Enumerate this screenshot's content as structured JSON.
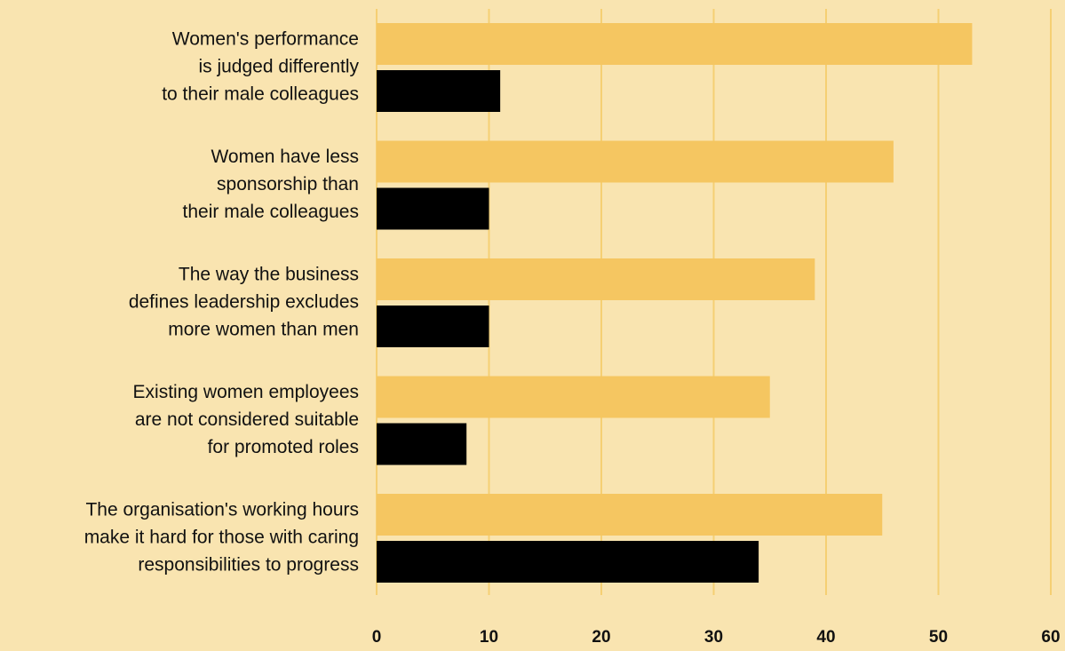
{
  "chart_data": {
    "type": "bar",
    "orientation": "horizontal",
    "categories": [
      [
        "Women's performance",
        "is judged differently",
        "to their male colleagues"
      ],
      [
        "Women have less",
        "sponsorship than",
        "their male colleagues"
      ],
      [
        "The way the business",
        "defines leadership excludes",
        "more women than men"
      ],
      [
        "Existing women employees",
        "are not considered suitable",
        "for promoted roles"
      ],
      [
        "The organisation's working hours",
        "make it hard for those with caring",
        "responsibilities to progress"
      ]
    ],
    "series": [
      {
        "color": "#f5c661",
        "values": [
          53,
          46,
          39,
          35,
          45
        ]
      },
      {
        "color": "#000000",
        "values": [
          11,
          10,
          10,
          8,
          34
        ]
      }
    ],
    "xlim": [
      0,
      60
    ],
    "xticks": [
      0,
      10,
      20,
      30,
      40,
      50,
      60
    ],
    "grid": true,
    "grid_color": "#f5cf73"
  }
}
